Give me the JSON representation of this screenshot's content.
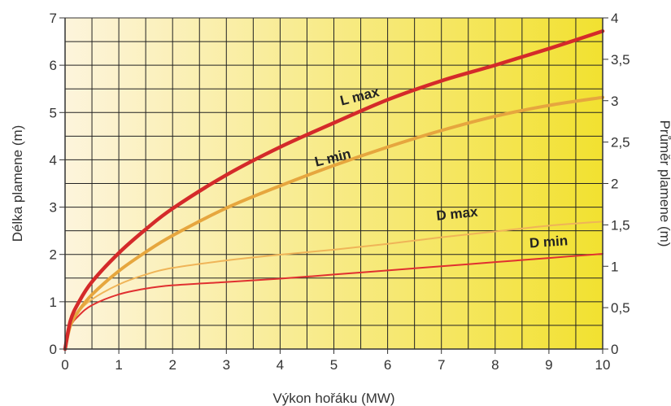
{
  "chart_data": {
    "type": "line",
    "xlabel": "Výkon hořáku (MW)",
    "ylabel_left": "Délka plamene (m)",
    "ylabel_right": "Průměr plamene (m)",
    "xlim": [
      0,
      10
    ],
    "ylim_left": [
      0,
      7
    ],
    "ylim_right": [
      0,
      4
    ],
    "x_ticks": [
      "0",
      "1",
      "2",
      "3",
      "4",
      "5",
      "6",
      "7",
      "8",
      "9",
      "10"
    ],
    "y_left_ticks": [
      "0",
      "1",
      "2",
      "3",
      "4",
      "5",
      "6",
      "7"
    ],
    "y_right_ticks": [
      "0",
      "0,5",
      "1",
      "1,5",
      "2",
      "2,5",
      "3",
      "3,5",
      "4"
    ],
    "grid": true,
    "background_gradient": [
      "#fdf4dc",
      "#f2e130"
    ],
    "series": [
      {
        "name": "L max",
        "axis": "left",
        "color": "#d42a2a",
        "width": 4.5,
        "x": [
          0,
          0.1,
          0.25,
          0.5,
          1,
          1.5,
          2,
          3,
          4,
          5,
          6,
          7,
          8,
          9,
          10
        ],
        "y": [
          0,
          0.6,
          0.98,
          1.42,
          2.03,
          2.53,
          2.97,
          3.68,
          4.27,
          4.78,
          5.27,
          5.67,
          6.0,
          6.35,
          6.72
        ],
        "label": "L max",
        "label_x": 5.5,
        "label_y": 5.25,
        "label_rot": -14
      },
      {
        "name": "L min",
        "axis": "left",
        "color": "#e6a63e",
        "width": 4,
        "x": [
          0,
          0.1,
          0.25,
          0.5,
          1,
          1.5,
          2,
          3,
          4,
          5,
          6,
          7,
          8,
          9,
          10
        ],
        "y": [
          0,
          0.5,
          0.8,
          1.15,
          1.65,
          2.05,
          2.4,
          2.98,
          3.45,
          3.88,
          4.27,
          4.62,
          4.92,
          5.15,
          5.32
        ],
        "label": "L min",
        "label_x": 5.0,
        "label_y": 3.95,
        "label_rot": -14
      },
      {
        "name": "D max",
        "axis": "right",
        "color": "#efb458",
        "width": 2,
        "x": [
          0,
          0.1,
          0.25,
          0.5,
          1,
          1.5,
          2,
          3,
          4,
          5,
          6,
          7,
          8,
          9,
          10
        ],
        "y": [
          0,
          0.3,
          0.45,
          0.6,
          0.78,
          0.9,
          0.98,
          1.07,
          1.14,
          1.2,
          1.27,
          1.35,
          1.42,
          1.49,
          1.54
        ],
        "label": "D max",
        "label_x": 7.3,
        "label_y": 1.58,
        "label_rot": -6
      },
      {
        "name": "D min",
        "axis": "right",
        "color": "#e03030",
        "width": 2,
        "x": [
          0,
          0.1,
          0.25,
          0.5,
          1,
          1.5,
          2,
          3,
          4,
          5,
          6,
          7,
          8,
          9,
          10
        ],
        "y": [
          0,
          0.27,
          0.4,
          0.53,
          0.66,
          0.73,
          0.77,
          0.81,
          0.85,
          0.9,
          0.95,
          1.0,
          1.05,
          1.1,
          1.15
        ],
        "label": "D min",
        "label_x": 9.0,
        "label_y": 1.24,
        "label_rot": -4
      }
    ]
  }
}
